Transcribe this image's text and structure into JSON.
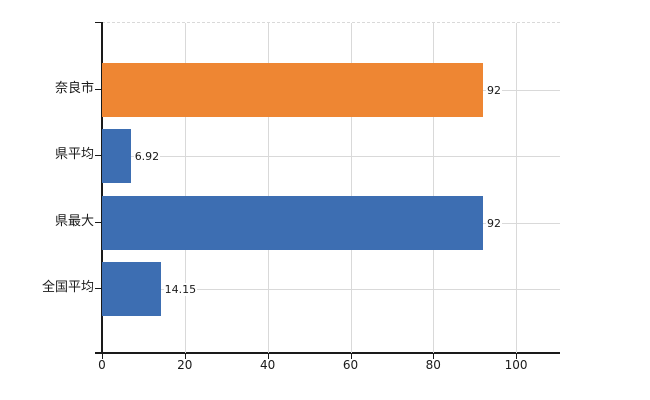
{
  "chart_data": {
    "type": "bar",
    "orientation": "horizontal",
    "title": "",
    "xlabel": "",
    "ylabel": "",
    "categories": [
      "奈良市",
      "県平均",
      "県最大",
      "全国平均"
    ],
    "values": [
      92,
      6.92,
      92,
      14.15
    ],
    "value_labels": [
      "92",
      "6.92",
      "92",
      "14.15"
    ],
    "bar_colors": [
      "#ee8633",
      "#3d6eb2",
      "#3d6eb2",
      "#3d6eb2"
    ],
    "xlim": [
      0,
      110.6
    ],
    "x_ticks": [
      0,
      20,
      40,
      60,
      80,
      100
    ],
    "x_tick_labels": [
      "0",
      "20",
      "40",
      "60",
      "80",
      "100"
    ],
    "grid": true,
    "gridline_color": "#d9d9d9",
    "axis_color": "#1a1a1a",
    "background_color": "#ffffff",
    "legend": "none"
  }
}
